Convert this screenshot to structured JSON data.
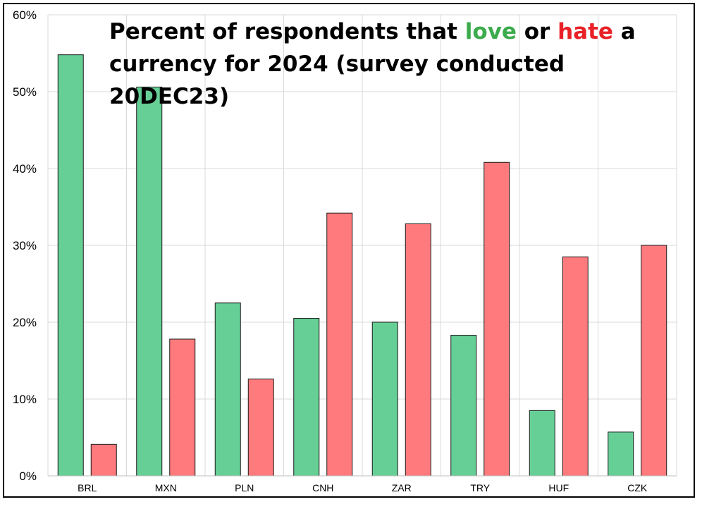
{
  "chart_data": {
    "type": "bar",
    "title": {
      "part1": "Percent of respondents that ",
      "love_word": "love",
      "part2": " or ",
      "hate_word": "hate",
      "part3": " a",
      "line2": "currency for 2024 (survey conducted 20DEC23)"
    },
    "categories": [
      "BRL",
      "MXN",
      "PLN",
      "CNH",
      "ZAR",
      "TRY",
      "HUF",
      "CZK"
    ],
    "series": [
      {
        "key": "love",
        "color": "#66cf96",
        "values": [
          54.8,
          50.6,
          22.5,
          20.5,
          20.0,
          18.3,
          8.5,
          5.7
        ]
      },
      {
        "key": "hate",
        "color": "#ff7a7c",
        "values": [
          4.1,
          17.8,
          12.6,
          34.2,
          32.8,
          40.8,
          28.5,
          30.0
        ]
      }
    ],
    "ylim": [
      0,
      60
    ],
    "yticks": [
      0,
      10,
      20,
      30,
      40,
      50,
      60
    ],
    "ytick_labels": [
      "0%",
      "10%",
      "20%",
      "30%",
      "40%",
      "50%",
      "60%"
    ],
    "xlabel": "",
    "ylabel": "",
    "grid": true,
    "legend": "none",
    "love_color": "#3bab4c",
    "hate_color": "#e82127"
  }
}
